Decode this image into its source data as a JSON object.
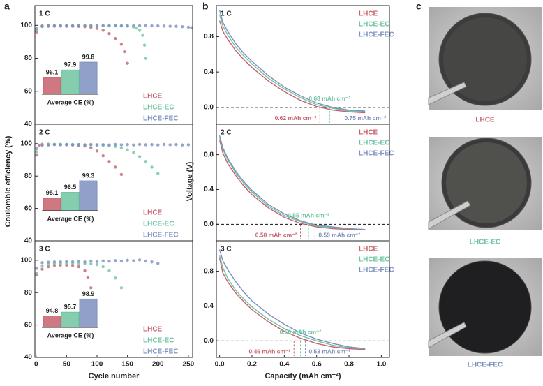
{
  "panel_labels": [
    "a",
    "b",
    "c"
  ],
  "photo_labels": [
    "LHCE",
    "LHCE-EC",
    "LHCE-FEC"
  ],
  "chart_data": [
    {
      "type": "scatter",
      "title": "1 C",
      "xlim": [
        -2,
        257
      ],
      "ylim": [
        40,
        112
      ],
      "yticks": [
        40,
        60,
        80,
        100
      ],
      "series": [
        {
          "name": "LHCE",
          "color": "#c8606b",
          "x": [
            1,
            10,
            20,
            30,
            40,
            50,
            60,
            70,
            80,
            90,
            100,
            110,
            120,
            130,
            140,
            145,
            150
          ],
          "values": [
            96,
            99.3,
            99.5,
            99.5,
            99.6,
            99.5,
            99.5,
            99.4,
            99.2,
            98.8,
            98.2,
            97.0,
            95.0,
            92.0,
            88.5,
            84,
            77
          ]
        },
        {
          "name": "LHCE-EC",
          "color": "#6fc4a0",
          "x": [
            1,
            10,
            20,
            30,
            40,
            50,
            60,
            70,
            80,
            90,
            100,
            110,
            120,
            130,
            140,
            150,
            160,
            165,
            170,
            175,
            178,
            180
          ],
          "values": [
            97,
            99.6,
            99.8,
            99.8,
            99.8,
            99.8,
            99.8,
            99.8,
            99.8,
            99.8,
            99.8,
            99.8,
            99.7,
            99.7,
            99.6,
            99.5,
            99.0,
            98.3,
            97,
            94,
            88,
            80
          ]
        },
        {
          "name": "LHCE-FEC",
          "color": "#7d8fc0",
          "x": [
            1,
            10,
            20,
            30,
            40,
            50,
            60,
            70,
            80,
            90,
            100,
            110,
            120,
            130,
            140,
            150,
            160,
            170,
            180,
            190,
            200,
            210,
            220,
            230,
            240,
            250,
            255
          ],
          "values": [
            98,
            99.7,
            99.8,
            99.8,
            99.8,
            99.8,
            99.8,
            99.8,
            99.8,
            99.8,
            99.8,
            99.8,
            99.8,
            99.8,
            99.8,
            99.8,
            99.8,
            99.8,
            99.8,
            99.7,
            99.7,
            99.6,
            99.5,
            99.4,
            99.2,
            98.9,
            98.6
          ]
        }
      ],
      "inset": {
        "type": "bar",
        "label": "Average CE (%)",
        "ylim": [
          92,
          100.5
        ],
        "values": [
          96.1,
          97.9,
          99.8
        ]
      }
    },
    {
      "type": "scatter",
      "title": "2 C",
      "ylabel": "Coulombic efficiency (%)",
      "xlim": [
        -2,
        257
      ],
      "ylim": [
        40,
        112
      ],
      "yticks": [
        40,
        60,
        80,
        100
      ],
      "series": [
        {
          "name": "LHCE",
          "color": "#c8606b",
          "x": [
            1,
            5,
            10,
            20,
            30,
            40,
            50,
            60,
            70,
            80,
            90,
            100,
            110,
            120,
            130,
            140
          ],
          "values": [
            93,
            99,
            99.6,
            99.6,
            99.5,
            99.4,
            99.3,
            99.2,
            99,
            98.6,
            97.5,
            95.5,
            92.5,
            89,
            85.5,
            81
          ]
        },
        {
          "name": "LHCE-EC",
          "color": "#6fc4a0",
          "x": [
            1,
            10,
            20,
            30,
            40,
            50,
            60,
            70,
            80,
            90,
            100,
            110,
            120,
            130,
            140,
            150,
            160,
            170,
            180,
            190,
            200
          ],
          "values": [
            95,
            99.5,
            99.6,
            99.6,
            99.6,
            99.5,
            99.5,
            99.4,
            99.3,
            99.2,
            99.1,
            99,
            98.7,
            98.3,
            97.5,
            96.2,
            94.5,
            92,
            89,
            85.5,
            81.5
          ]
        },
        {
          "name": "LHCE-FEC",
          "color": "#7d8fc0",
          "x": [
            1,
            10,
            20,
            30,
            40,
            50,
            60,
            70,
            80,
            90,
            100,
            110,
            120,
            130,
            140,
            150,
            160,
            170,
            180,
            190,
            200,
            210,
            220,
            230,
            240,
            250
          ],
          "values": [
            97,
            99,
            99.2,
            99.4,
            99.3,
            99.5,
            99.3,
            99.4,
            99.2,
            99.5,
            99.3,
            99.4,
            99.2,
            99.5,
            99.3,
            99.4,
            99.2,
            99.5,
            99.3,
            99.4,
            99.2,
            99.5,
            99.3,
            99.4,
            99.2,
            99.3
          ]
        }
      ],
      "inset": {
        "type": "bar",
        "label": "Average CE (%)",
        "ylim": [
          92,
          100.5
        ],
        "values": [
          95.1,
          96.5,
          99.3
        ]
      }
    },
    {
      "type": "scatter",
      "title": "3 C",
      "xlabel": "Cycle number",
      "xlim": [
        -2,
        257
      ],
      "ylim": [
        40,
        112
      ],
      "yticks": [
        40,
        60,
        80,
        100
      ],
      "xticks": [
        0,
        50,
        100,
        150,
        200,
        250
      ],
      "series": [
        {
          "name": "LHCE",
          "color": "#c8606b",
          "x": [
            1,
            10,
            20,
            30,
            40,
            50,
            60,
            70,
            80,
            85,
            90
          ],
          "values": [
            91,
            94.5,
            96,
            96.8,
            97,
            97,
            96.8,
            96,
            93.5,
            89.5,
            83
          ]
        },
        {
          "name": "LHCE-EC",
          "color": "#6fc4a0",
          "x": [
            1,
            10,
            20,
            30,
            40,
            50,
            60,
            70,
            80,
            90,
            100,
            110,
            120,
            130,
            140
          ],
          "values": [
            92,
            96.5,
            97.5,
            98,
            98.2,
            98.2,
            98.2,
            98.1,
            98,
            97.8,
            97.3,
            96,
            93.5,
            89,
            83
          ]
        },
        {
          "name": "LHCE-FEC",
          "color": "#7d8fc0",
          "x": [
            1,
            10,
            20,
            30,
            40,
            50,
            60,
            70,
            80,
            90,
            100,
            110,
            120,
            130,
            140,
            150,
            160,
            170,
            180,
            190,
            200
          ],
          "values": [
            95,
            98.5,
            98.8,
            99,
            99,
            99.2,
            99.1,
            99.3,
            99,
            99.5,
            99.2,
            99.6,
            99.4,
            99.8,
            99.5,
            100,
            99.7,
            100.2,
            99.5,
            99,
            98
          ]
        }
      ],
      "inset": {
        "type": "bar",
        "label": "Average CE (%)",
        "ylim": [
          92,
          100.5
        ],
        "values": [
          94.8,
          95.7,
          98.9
        ]
      }
    },
    {
      "type": "line",
      "title": "1 C",
      "xlim": [
        -0.02,
        1.05
      ],
      "ylim": [
        -0.19,
        1.15
      ],
      "hline": 0,
      "yticks": [
        {
          "value": 0,
          "label": "0.0"
        },
        {
          "value": 0.4,
          "label": "0.4"
        },
        {
          "value": 0.8,
          "label": "0.8"
        }
      ],
      "series": [
        {
          "name": "LHCE",
          "color": "#c8606b",
          "x": [
            0,
            0.02,
            0.05,
            0.1,
            0.15,
            0.2,
            0.3,
            0.4,
            0.5,
            0.6,
            0.7,
            0.8,
            0.9
          ],
          "values": [
            0.98,
            0.86,
            0.77,
            0.64,
            0.54,
            0.45,
            0.3,
            0.18,
            0.08,
            0.01,
            -0.03,
            -0.05,
            -0.06
          ]
        },
        {
          "name": "LHCE-EC",
          "color": "#6fc4a0",
          "x": [
            0,
            0.02,
            0.05,
            0.1,
            0.15,
            0.2,
            0.3,
            0.4,
            0.5,
            0.6,
            0.7,
            0.8,
            0.9
          ],
          "values": [
            1.05,
            0.92,
            0.82,
            0.68,
            0.58,
            0.49,
            0.33,
            0.21,
            0.11,
            0.03,
            -0.01,
            -0.04,
            -0.05
          ]
        },
        {
          "name": "LHCE-FEC",
          "color": "#7d8fc0",
          "x": [
            0,
            0.02,
            0.05,
            0.1,
            0.15,
            0.2,
            0.3,
            0.4,
            0.5,
            0.6,
            0.7,
            0.8,
            0.9
          ],
          "values": [
            1.1,
            0.96,
            0.86,
            0.72,
            0.61,
            0.52,
            0.36,
            0.23,
            0.13,
            0.05,
            0.0,
            -0.03,
            -0.04
          ]
        }
      ],
      "annotations": [
        {
          "text": "0.62 mAh cm⁻²",
          "x": 0.62,
          "color": "#c8606b"
        },
        {
          "text": "0.68 mAh cm⁻²",
          "x": 0.68,
          "color": "#6fc4a0"
        },
        {
          "text": "0.75 mAh cm⁻²",
          "x": 0.75,
          "color": "#7d8fc0"
        }
      ]
    },
    {
      "type": "line",
      "title": "2 C",
      "ylabel": "Voltage (V)",
      "xlim": [
        -0.02,
        1.05
      ],
      "ylim": [
        -0.19,
        1.15
      ],
      "hline": 0,
      "yticks": [
        {
          "value": 0,
          "label": "0.0"
        },
        {
          "value": 0.4,
          "label": "0.4"
        },
        {
          "value": 0.8,
          "label": "0.8"
        }
      ],
      "series": [
        {
          "name": "LHCE",
          "color": "#c8606b",
          "x": [
            0,
            0.02,
            0.05,
            0.1,
            0.15,
            0.2,
            0.3,
            0.4,
            0.5,
            0.6,
            0.7,
            0.8,
            0.9
          ],
          "values": [
            0.97,
            0.82,
            0.7,
            0.56,
            0.44,
            0.34,
            0.19,
            0.08,
            0.01,
            -0.03,
            -0.05,
            -0.06,
            -0.06
          ]
        },
        {
          "name": "LHCE-EC",
          "color": "#6fc4a0",
          "x": [
            0,
            0.02,
            0.05,
            0.1,
            0.15,
            0.2,
            0.3,
            0.4,
            0.5,
            0.6,
            0.7,
            0.8,
            0.9
          ],
          "values": [
            1.0,
            0.86,
            0.74,
            0.59,
            0.47,
            0.37,
            0.21,
            0.1,
            0.03,
            -0.02,
            -0.04,
            -0.05,
            -0.06
          ]
        },
        {
          "name": "LHCE-FEC",
          "color": "#7d8fc0",
          "x": [
            0,
            0.02,
            0.05,
            0.1,
            0.15,
            0.2,
            0.3,
            0.4,
            0.5,
            0.6,
            0.7,
            0.8,
            0.9
          ],
          "values": [
            1.02,
            0.88,
            0.76,
            0.61,
            0.49,
            0.39,
            0.23,
            0.12,
            0.04,
            -0.01,
            -0.03,
            -0.05,
            -0.06
          ]
        }
      ],
      "annotations": [
        {
          "text": "0.50 mAh cm⁻²",
          "x": 0.5,
          "color": "#c8606b"
        },
        {
          "text": "0.55 mAh cm⁻²",
          "x": 0.55,
          "color": "#6fc4a0"
        },
        {
          "text": "0.59 mAh cm⁻²",
          "x": 0.59,
          "color": "#7d8fc0"
        }
      ]
    },
    {
      "type": "line",
      "title": "3 C",
      "xlabel": "Capacity (mAh cm⁻²)",
      "xlim": [
        -0.02,
        1.05
      ],
      "ylim": [
        -0.19,
        1.15
      ],
      "hline": 0,
      "yticks": [
        {
          "value": 0,
          "label": "0.0"
        },
        {
          "value": 0.4,
          "label": "0.4"
        },
        {
          "value": 0.8,
          "label": "0.8"
        }
      ],
      "xticks": [
        {
          "value": 0,
          "label": "0.0"
        },
        {
          "value": 0.2,
          "label": "0.2"
        },
        {
          "value": 0.4,
          "label": "0.4"
        },
        {
          "value": 0.6,
          "label": "0.6"
        },
        {
          "value": 0.8,
          "label": "0.8"
        },
        {
          "value": 1,
          "label": "1.0"
        }
      ],
      "series": [
        {
          "name": "LHCE",
          "color": "#c8606b",
          "x": [
            0,
            0.02,
            0.05,
            0.1,
            0.15,
            0.2,
            0.3,
            0.4,
            0.5,
            0.6,
            0.7,
            0.8,
            0.9
          ],
          "values": [
            0.95,
            0.78,
            0.68,
            0.55,
            0.45,
            0.36,
            0.22,
            0.11,
            0.03,
            -0.03,
            -0.07,
            -0.09,
            -0.1
          ]
        },
        {
          "name": "LHCE-EC",
          "color": "#6fc4a0",
          "x": [
            0,
            0.02,
            0.05,
            0.1,
            0.15,
            0.2,
            0.3,
            0.4,
            0.5,
            0.6,
            0.7,
            0.8,
            0.9
          ],
          "values": [
            0.98,
            0.84,
            0.72,
            0.58,
            0.48,
            0.39,
            0.25,
            0.14,
            0.06,
            0.0,
            -0.05,
            -0.08,
            -0.09
          ]
        },
        {
          "name": "LHCE-FEC",
          "color": "#7d8fc0",
          "x": [
            0,
            0.02,
            0.05,
            0.1,
            0.15,
            0.2,
            0.3,
            0.4,
            0.5,
            0.6,
            0.7,
            0.8,
            0.9
          ],
          "values": [
            1.05,
            0.92,
            0.82,
            0.68,
            0.56,
            0.46,
            0.31,
            0.19,
            0.09,
            0.02,
            -0.03,
            -0.07,
            -0.09
          ]
        }
      ],
      "annotations": [
        {
          "text": "0.46 mAh cm⁻²",
          "x": 0.46,
          "color": "#c8606b"
        },
        {
          "text": "0.50 mAh cm⁻²",
          "x": 0.5,
          "color": "#6fc4a0"
        },
        {
          "text": "0.53 mAh cm⁻²",
          "x": 0.53,
          "color": "#7d8fc0"
        }
      ]
    }
  ]
}
